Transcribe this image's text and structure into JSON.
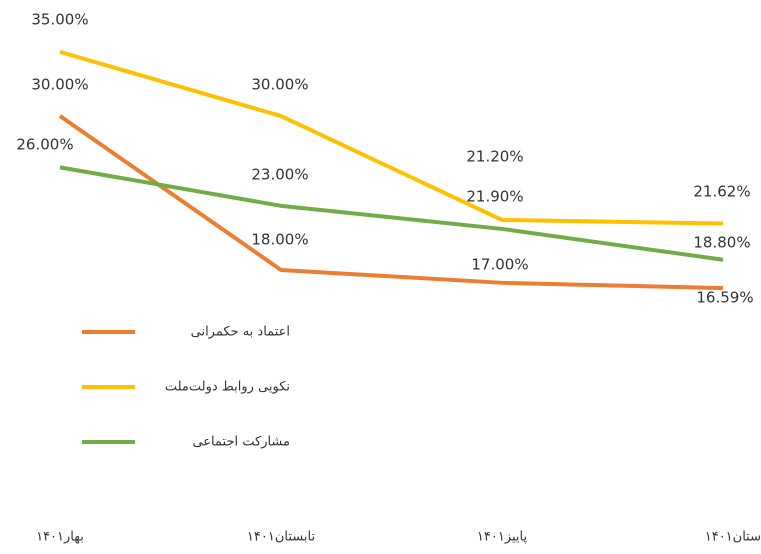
{
  "chart_data": {
    "type": "line",
    "categories": [
      "بهار۱۴۰۱",
      "تابستان۱۴۰۱",
      "پاییز۱۴۰۱",
      "ستان۱۴۰۱"
    ],
    "series": [
      {
        "name": "اعتماد به حکمرانی",
        "color": "#ED7D31",
        "values": [
          30,
          18,
          17,
          16.59
        ],
        "value_labels": [
          "30.00%",
          "18.00%",
          "17.00%",
          "16.59%"
        ]
      },
      {
        "name": "نکویی روابط دولت‌ملت",
        "color": "#FFC000",
        "values": [
          35,
          30,
          21.9,
          21.62
        ],
        "value_labels": [
          "35.00%",
          "30.00%",
          "21.90%",
          "21.62%"
        ]
      },
      {
        "name": "مشارکت اجتماعی",
        "color": "#70AD47",
        "values": [
          26,
          23,
          21.2,
          18.8
        ],
        "value_labels": [
          "26.00%",
          "23.00%",
          "21.20%",
          "18.80%"
        ]
      }
    ],
    "ylim": [
      14,
      38
    ],
    "legend": "left"
  }
}
